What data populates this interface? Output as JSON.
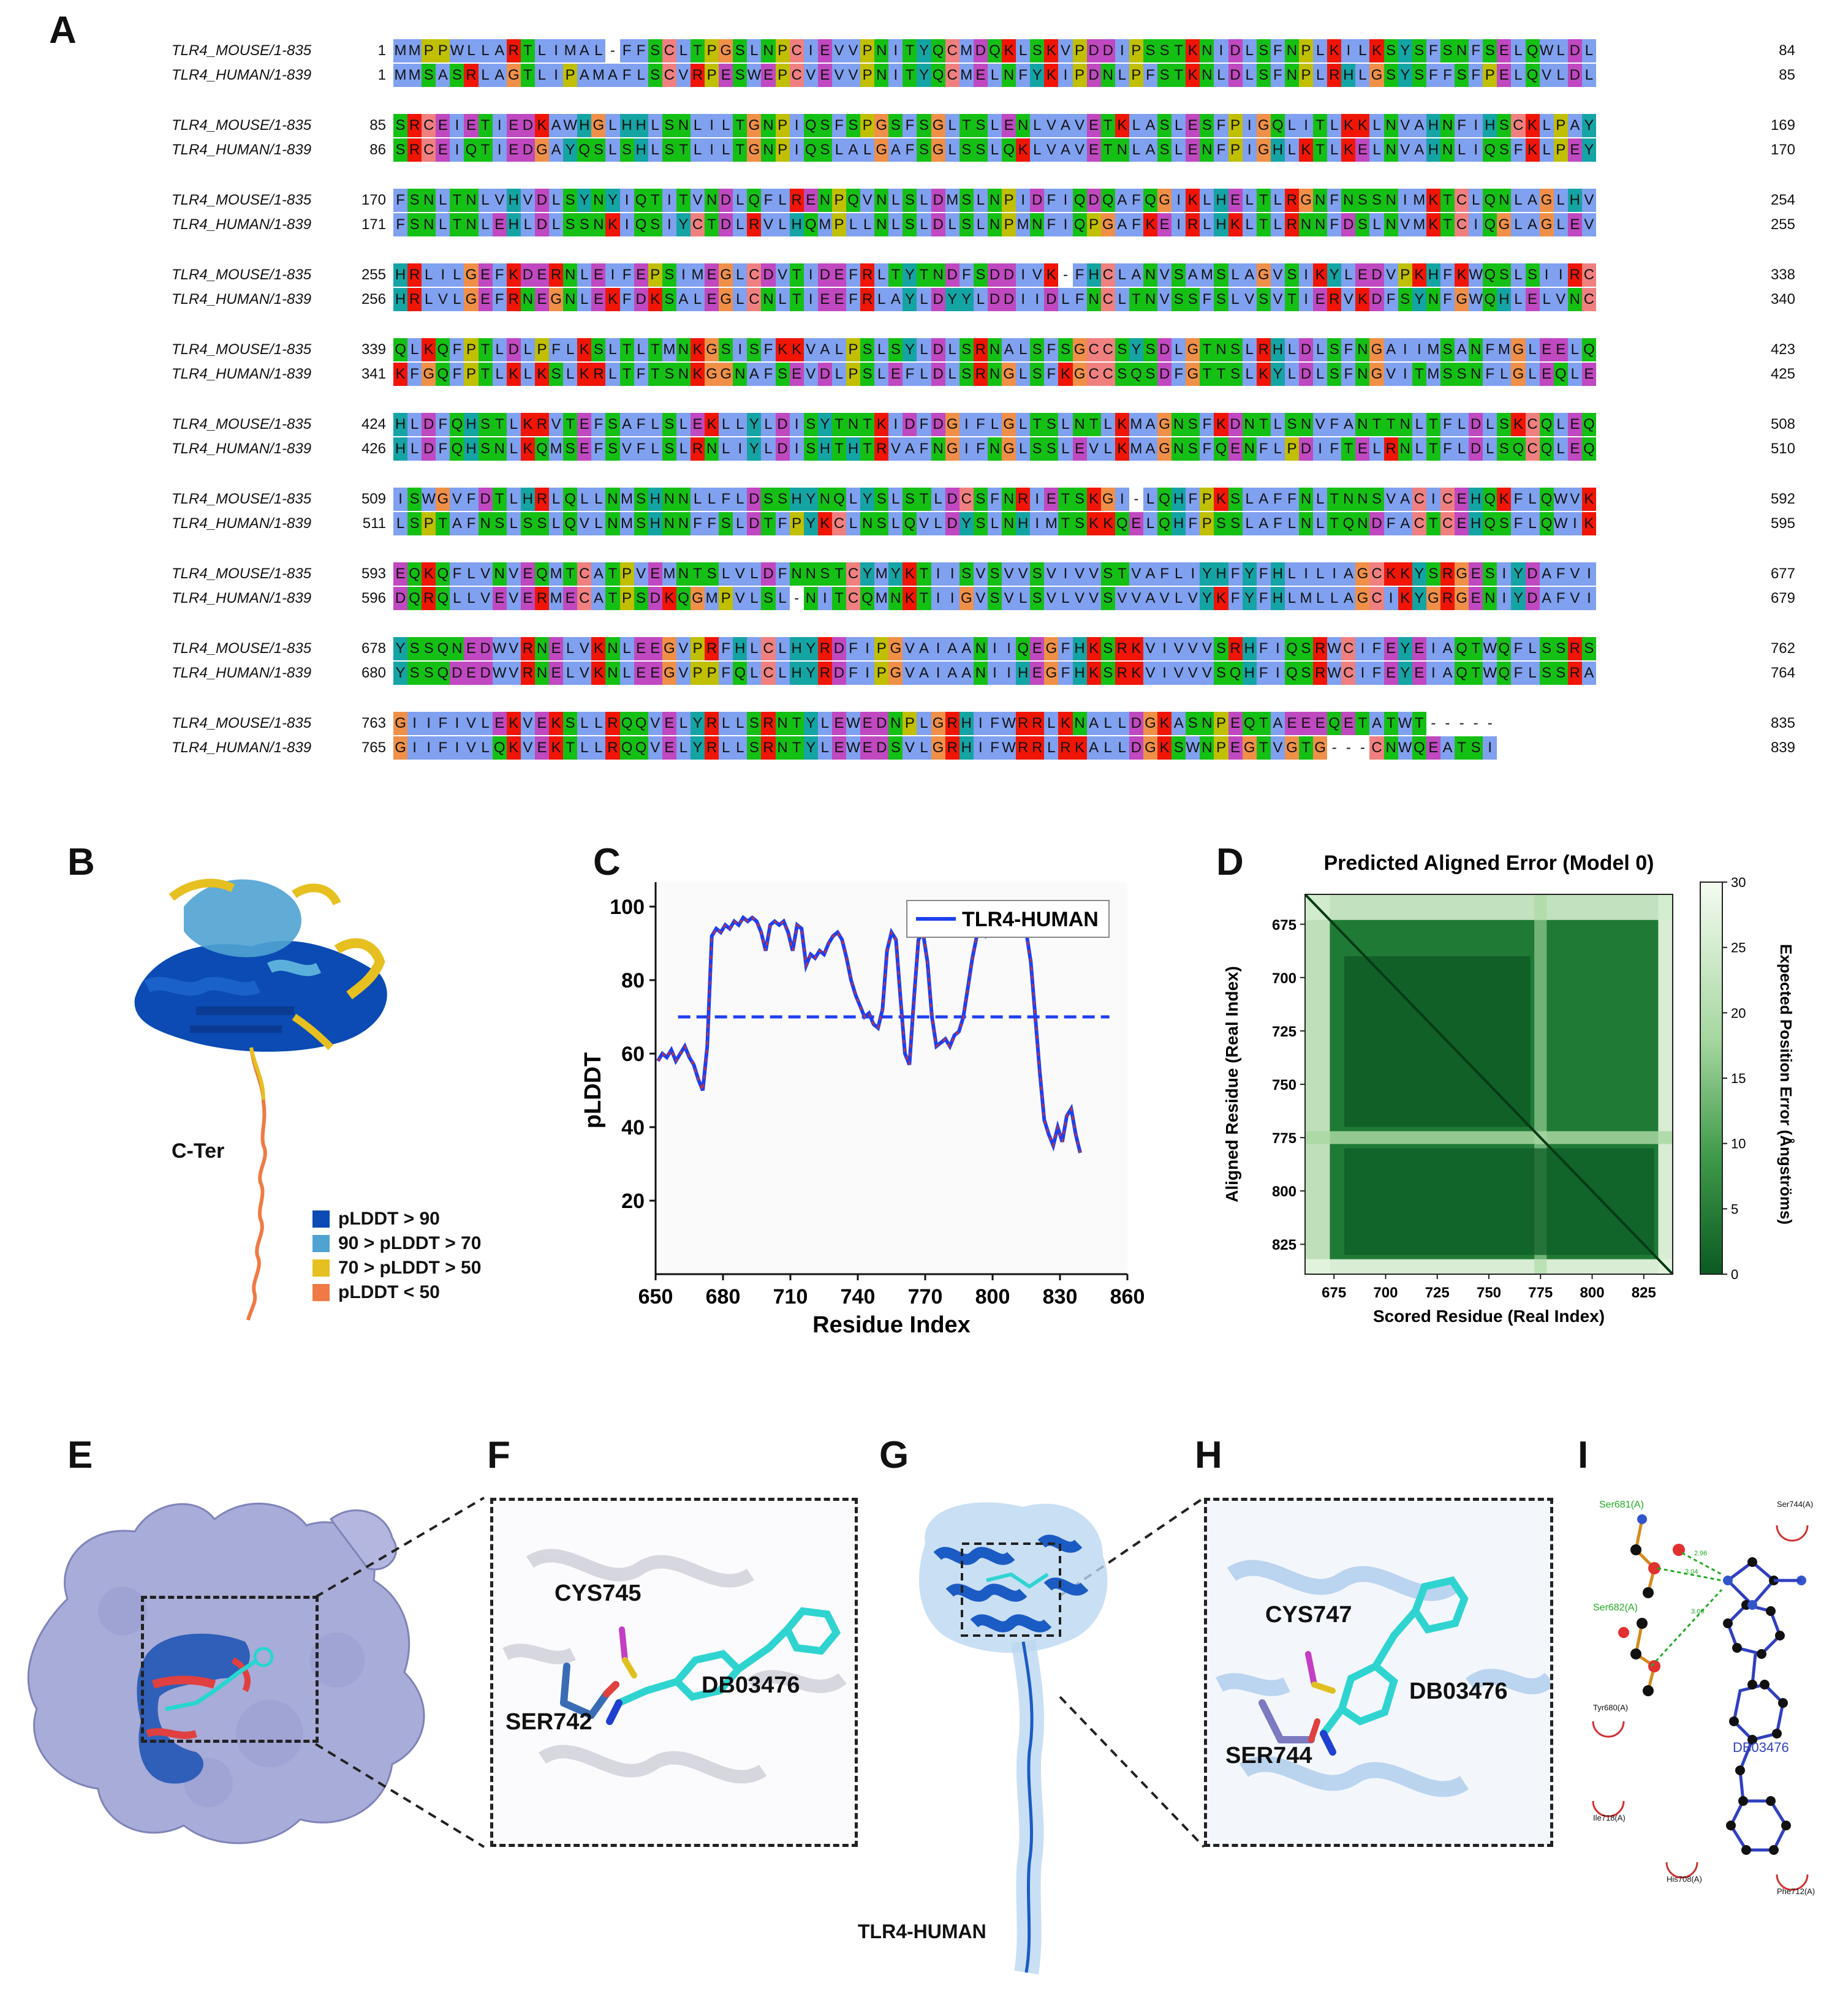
{
  "panels": {
    "a": "A",
    "b": "B",
    "c": "C",
    "d": "D",
    "e": "E",
    "f": "F",
    "g": "G",
    "h": "H",
    "i": "I"
  },
  "alignment": {
    "blocks": [
      {
        "mouse": {
          "name": "TLR4_MOUSE/1-835",
          "start": "1",
          "seq": "MMPPWLLARTLIMAL-FFSCLTPGSLNPCIEVVPNITYQCMDQKLSKVPDDIPSSTKNIDLSFNPLKILKSYSFSNFSELQWLDL",
          "end": "84"
        },
        "human": {
          "name": "TLR4_HUMAN/1-839",
          "start": "1",
          "seq": "MMSASRLAGTLIPAMAFLSCVRPESWEPCVEVVPNITYQCMELNFYKIPDNLPFSTKNLDLSFNPLRHLGSYSFFSFPELQVLDL",
          "end": "85"
        }
      },
      {
        "mouse": {
          "name": "TLR4_MOUSE/1-835",
          "start": "85",
          "seq": "SRCEIETIEDKAWHGLHHLSNLILTGNPIQSFSPGSFSGLTSLENLVAVETKLASLESFPIGQLITLKKLNVAHNFIHSCKLPAY",
          "end": "169"
        },
        "human": {
          "name": "TLR4_HUMAN/1-839",
          "start": "86",
          "seq": "SRCEIQTIEDGAYQSLSHLSTLILTGNPIQSLALGAFSGLSSLQKLVAVETNLASLENFPIGHLKTLKELNVAHNLIQSFKLPEY",
          "end": "170"
        }
      },
      {
        "mouse": {
          "name": "TLR4_MOUSE/1-835",
          "start": "170",
          "seq": "FSNLTNLVHVDLSYNYIQTITVNDLQFLRENPQVNLSLDMSLNPIDFIQDQAFQGIKLHELTLRGNFNSSNIMKTCLQNLAGLHV",
          "end": "254"
        },
        "human": {
          "name": "TLR4_HUMAN/1-839",
          "start": "171",
          "seq": "FSNLTNLEHLDLSSNKIQSIYCTDLRVLHQMPLLNLSLDLSLNPMNFIQPGAFKEIRLHKLTLRNNFDSLNVMKTCIQGLAGLEV",
          "end": "255"
        }
      },
      {
        "mouse": {
          "name": "TLR4_MOUSE/1-835",
          "start": "255",
          "seq": "HRLILGEFKDERNLEIFEPSIMEGLCDVTIDEFRLTYTNDFSDDIVK-FHCLANVSAMSLAGVSIKYLEDVPKHFKWQSLSIIRC",
          "end": "338"
        },
        "human": {
          "name": "TLR4_HUMAN/1-839",
          "start": "256",
          "seq": "HRLVLGEFRNEGNLEKFDKSALEGLCNLTIEEFRLAYLDYYLDDIIDLFNCLTNVSSFSLVSVTIERVKDFSYNFGWQHLELVNC",
          "end": "340"
        }
      },
      {
        "mouse": {
          "name": "TLR4_MOUSE/1-835",
          "start": "339",
          "seq": "QLKQFPTLDLPFLKSLTLTMNKGSISFKKVALPSLSYLDLSRNALSFSGCCSYSDLGTNSLRHLDLSFNGAIIMSANFMGLEELQ",
          "end": "423"
        },
        "human": {
          "name": "TLR4_HUMAN/1-839",
          "start": "341",
          "seq": "KFGQFPTLKLKSLKRLTFTSNKGGNAFSEVDLPSLEFLDLSRNGLSFKGCCSQSDFGTTSLKYLDLSFNGVITMSSNFLGLEQLE",
          "end": "425"
        }
      },
      {
        "mouse": {
          "name": "TLR4_MOUSE/1-835",
          "start": "424",
          "seq": "HLDFQHSTLKRVTEFSAFLSLEKLLYLDISYTNTKIDFDGIFLGLTSLNTLKMAGNSFKDNTLSNVFANTTNLTFLDLSKCQLEQ",
          "end": "508"
        },
        "human": {
          "name": "TLR4_HUMAN/1-839",
          "start": "426",
          "seq": "HLDFQHSNLKQMSEFSVFLSLRNLIYLDISHTHTRVAFNGIFNGLSSLEVLKMAGNSFQENFLPDIFTELRNLTFLDLSQCQLEQ",
          "end": "510"
        }
      },
      {
        "mouse": {
          "name": "TLR4_MOUSE/1-835",
          "start": "509",
          "seq": "ISWGVFDTLHRLQLLNMSHNNLLFLDSSHYNQLYSLSTLDCSFNRIETSKGI-LQHFPKSLAFFNLTNNSVACICEHQKFLQWVK",
          "end": "592"
        },
        "human": {
          "name": "TLR4_HUMAN/1-839",
          "start": "511",
          "seq": "LSPTAFNSLSSLQVLNMSHNNFFSLDTFPYKCLNSLQVLDYSLNHIMTSKKQELQHFPSSLAFLNLTQNDFACTCEHQSFLQWIK",
          "end": "595"
        }
      },
      {
        "mouse": {
          "name": "TLR4_MOUSE/1-835",
          "start": "593",
          "seq": "EQKQFLVNVEQMTCATPVEMNTSLVLDFNNSTCYMYKTIISVSVVSVIVVSTVAFLIYHFYFHLILIAGCKKYSRGESIYDAFVI",
          "end": "677"
        },
        "human": {
          "name": "TLR4_HUMAN/1-839",
          "start": "596",
          "seq": "DQRQLLVEVERMECATPSDKQGMPVLSL-NITCQMNKTIIGVSVLSVLVVSVVAVLVYKFYFHLMLLAGCIKYGRGENIYDAFVI",
          "end": "679"
        }
      },
      {
        "mouse": {
          "name": "TLR4_MOUSE/1-835",
          "start": "678",
          "seq": "YSSQNEDWVRNELVKNLEEGVPRFHLCLHYRDFIPGVAIAANIIQEGFHKSRKVIVVVSRHFIQSRWCIFEYEIAQTWQFLSSRS",
          "end": "762"
        },
        "human": {
          "name": "TLR4_HUMAN/1-839",
          "start": "680",
          "seq": "YSSQDEDWVRNELVKNLEEGVPPFQLCLHYRDFIPGVAIAANIIHEGFHKSRKVIVVVSQHFIQSRWCIFEYEIAQTWQFLSSRA",
          "end": "764"
        }
      },
      {
        "mouse": {
          "name": "TLR4_MOUSE/1-835",
          "start": "763",
          "seq": "GIIFIVLEKVEKSLLRQQVELYRLLSRNTYLEWEDNPLGRHIFWRRLKNALLDGKASNPEQTAEEEQETATWT-----",
          "end": "835"
        },
        "human": {
          "name": "TLR4_HUMAN/1-839",
          "start": "765",
          "seq": "GIIFIVLQKVEKTLLRQQVELYRLLSRNTYLEWEDSVLGRHIFWRRLRKALLDGKSWNPEGTVGTG---CNWQEATSI",
          "end": "839"
        }
      }
    ],
    "residue_colors": {
      "A": "#80a0f0",
      "I": "#80a0f0",
      "L": "#80a0f0",
      "M": "#80a0f0",
      "F": "#80a0f0",
      "W": "#80a0f0",
      "V": "#80a0f0",
      "C": "#f08080",
      "K": "#f01505",
      "R": "#f01505",
      "E": "#c048c0",
      "D": "#c048c0",
      "N": "#15c015",
      "Q": "#15c015",
      "S": "#15c015",
      "T": "#15c015",
      "G": "#f09048",
      "P": "#c0c000",
      "H": "#15a4a4",
      "Y": "#15a4a4"
    }
  },
  "panel_b": {
    "annotation": "C-Ter",
    "legend": [
      {
        "label": "pLDDT > 90",
        "color": "#0b4bb3"
      },
      {
        "label": "90 > pLDDT > 70",
        "color": "#4fa3d1"
      },
      {
        "label": "70 > pLDDT > 50",
        "color": "#e6c020"
      },
      {
        "label": "pLDDT < 50",
        "color": "#f07a45"
      }
    ]
  },
  "chart_data": [
    {
      "type": "line",
      "title": "",
      "xlabel": "Residue Index",
      "ylabel": "pLDDT",
      "xlim": [
        650,
        860
      ],
      "ylim": [
        0,
        100
      ],
      "xticks": [
        "650",
        "680",
        "710",
        "740",
        "770",
        "800",
        "830",
        "860"
      ],
      "yticks": [
        "20",
        "40",
        "60",
        "80",
        "100"
      ],
      "threshold": 70,
      "legend": "top-right",
      "series": [
        {
          "name": "TLR4-HUMAN",
          "color": "#1e3ff0",
          "marker_color": "#d8302a",
          "x": [
            651,
            653,
            655,
            657,
            659,
            661,
            663,
            665,
            667,
            669,
            671,
            673,
            675,
            677,
            679,
            681,
            683,
            685,
            687,
            689,
            691,
            693,
            695,
            697,
            699,
            701,
            703,
            705,
            707,
            709,
            711,
            713,
            715,
            717,
            719,
            721,
            723,
            725,
            727,
            729,
            731,
            733,
            735,
            737,
            739,
            741,
            743,
            745,
            747,
            749,
            751,
            753,
            755,
            757,
            759,
            761,
            763,
            765,
            767,
            769,
            771,
            773,
            775,
            777,
            779,
            781,
            783,
            785,
            787,
            789,
            791,
            793,
            795,
            797,
            799,
            801,
            803,
            805,
            807,
            809,
            811,
            813,
            815,
            817,
            819,
            821,
            823,
            825,
            827,
            829,
            831,
            833,
            835,
            837,
            839
          ],
          "y": [
            58,
            60,
            59,
            61,
            58,
            60,
            62,
            59,
            57,
            53,
            50,
            62,
            92,
            94,
            93,
            95,
            94,
            96,
            95,
            97,
            96,
            97,
            96,
            93,
            88,
            95,
            96,
            95,
            96,
            93,
            88,
            95,
            94,
            84,
            87,
            86,
            88,
            87,
            90,
            92,
            93,
            91,
            86,
            80,
            76,
            73,
            70,
            71,
            68,
            67,
            72,
            88,
            93,
            91,
            75,
            60,
            57,
            75,
            91,
            93,
            85,
            70,
            62,
            63,
            64,
            62,
            65,
            66,
            70,
            78,
            86,
            92,
            94,
            92,
            93,
            95,
            94,
            96,
            95,
            97,
            95,
            96,
            93,
            85,
            70,
            55,
            42,
            38,
            35,
            40,
            36,
            43,
            45,
            38,
            33
          ]
        }
      ]
    },
    {
      "type": "heatmap",
      "title": "Predicted Aligned Error (Model 0)",
      "xlabel": "Scored Residue (Real Index)",
      "ylabel": "Aligned Residue (Real Index)",
      "xticks": [
        "675",
        "700",
        "725",
        "750",
        "775",
        "800",
        "825"
      ],
      "yticks": [
        "675",
        "700",
        "725",
        "750",
        "775",
        "800",
        "825"
      ],
      "colorbar_label": "Expected Position Error (Ångströms)",
      "colorbar_ticks": [
        "0",
        "5",
        "10",
        "15",
        "20",
        "25",
        "30"
      ],
      "range": [
        0,
        30
      ],
      "residue_range": [
        661,
        839
      ]
    }
  ],
  "panel_e": {},
  "panel_f": {
    "cys": "CYS745",
    "ser": "SER742",
    "ligand": "DB03476"
  },
  "panel_g": {
    "caption": "TLR4-HUMAN"
  },
  "panel_h": {
    "cys": "CYS747",
    "ser": "SER744",
    "ligand": "DB03476"
  },
  "panel_i": {
    "ligand": "DB03476",
    "hbond_residues": [
      "Ser681(A)",
      "Ser682(A)"
    ],
    "hydrophobic_residues": [
      "Ser744(A)",
      "Tyr680(A)",
      "Ile718(A)",
      "His708(A)",
      "Phe712(A)"
    ],
    "distances": [
      "2.96",
      "3.04",
      "3.06"
    ]
  }
}
